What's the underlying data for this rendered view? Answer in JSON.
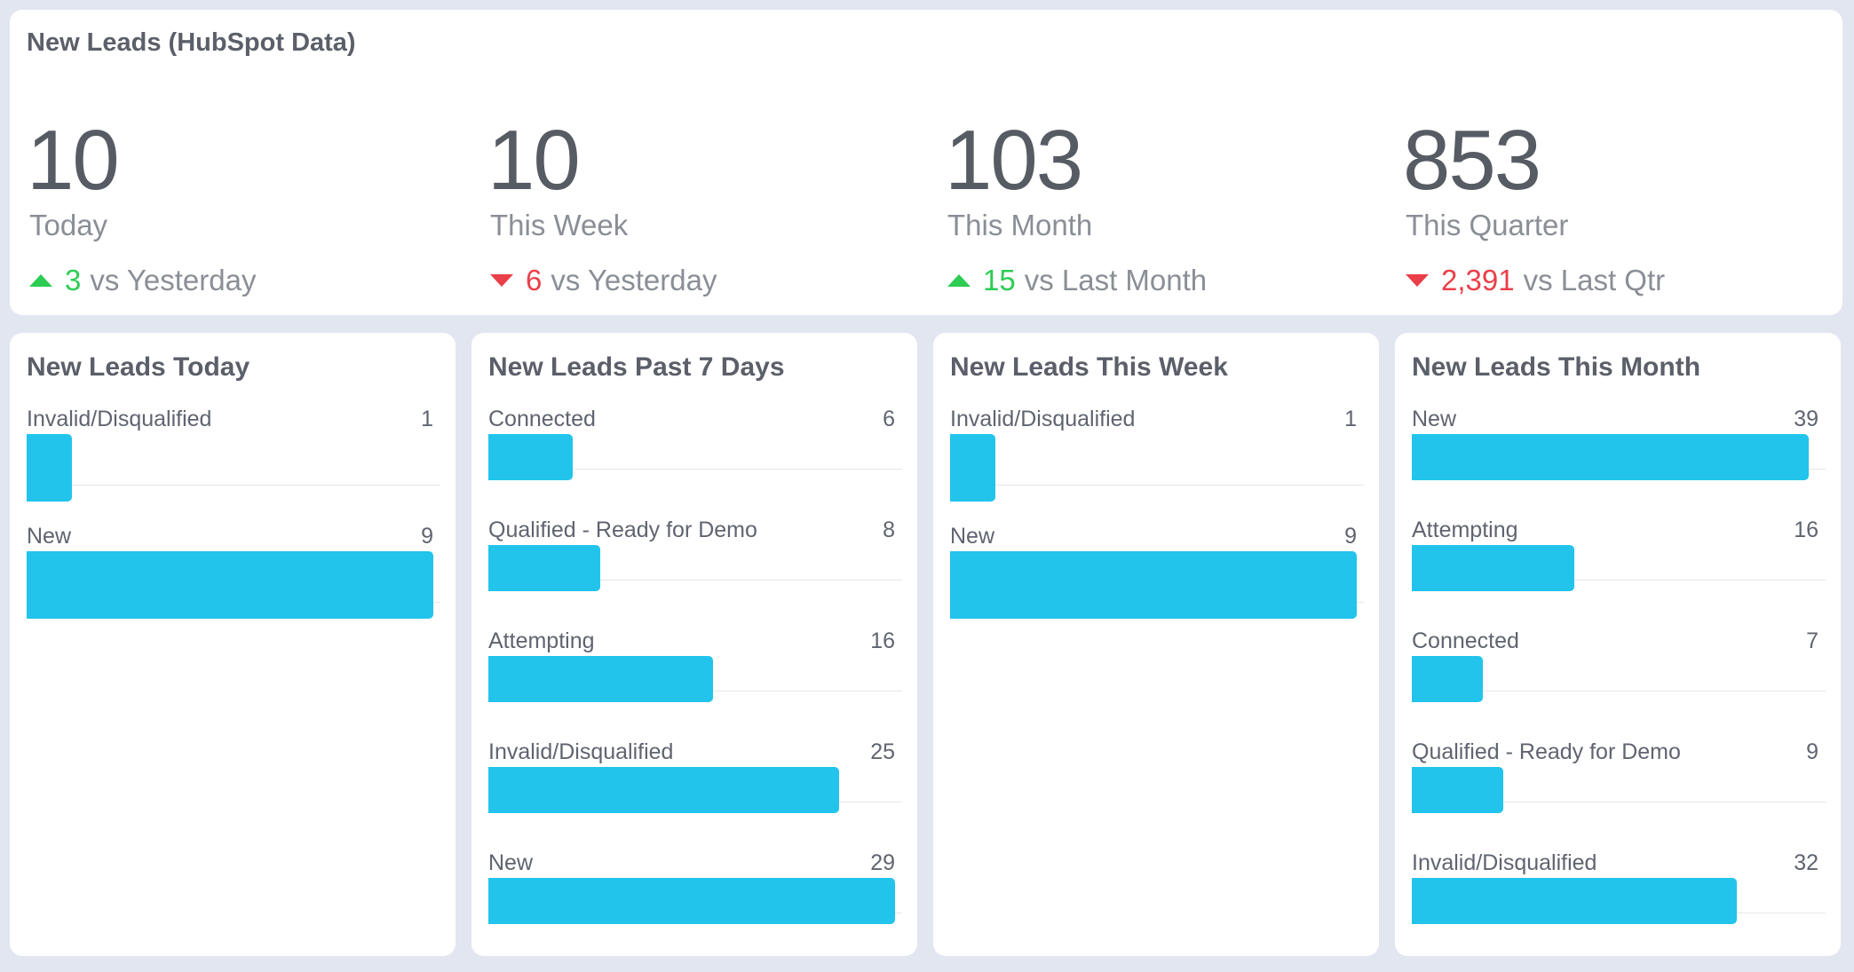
{
  "kpi_panel": {
    "title": "New Leads (HubSpot Data)",
    "colors": {
      "up": "#2ecc53",
      "down": "#ea3f48"
    },
    "items": [
      {
        "value": "10",
        "label": "Today",
        "direction": "up",
        "delta": "3",
        "compare": "vs Yesterday"
      },
      {
        "value": "10",
        "label": "This Week",
        "direction": "down",
        "delta": "6",
        "compare": "vs Yesterday"
      },
      {
        "value": "103",
        "label": "This Month",
        "direction": "up",
        "delta": "15",
        "compare": "vs Last Month"
      },
      {
        "value": "853",
        "label": "This Quarter",
        "direction": "down",
        "delta": "2,391",
        "compare": "vs Last Qtr"
      }
    ]
  },
  "bar_color": "#22c4ec",
  "chart_data": [
    {
      "type": "bar",
      "orientation": "horizontal",
      "title": "New Leads Today",
      "categories": [
        "Invalid/Disqualified",
        "New"
      ],
      "values": [
        1,
        9
      ],
      "xlim": [
        0,
        9
      ]
    },
    {
      "type": "bar",
      "orientation": "horizontal",
      "title": "New Leads Past 7 Days",
      "categories": [
        "Connected",
        "Qualified - Ready for Demo",
        "Attempting",
        "Invalid/Disqualified",
        "New"
      ],
      "values": [
        6,
        8,
        16,
        25,
        29
      ],
      "xlim": [
        0,
        29
      ]
    },
    {
      "type": "bar",
      "orientation": "horizontal",
      "title": "New Leads This Week",
      "categories": [
        "Invalid/Disqualified",
        "New"
      ],
      "values": [
        1,
        9
      ],
      "xlim": [
        0,
        9
      ]
    },
    {
      "type": "bar",
      "orientation": "horizontal",
      "title": "New Leads This Month",
      "categories": [
        "New",
        "Attempting",
        "Connected",
        "Qualified - Ready for Demo",
        "Invalid/Disqualified"
      ],
      "values": [
        39,
        16,
        7,
        9,
        32
      ],
      "xlim": [
        0,
        40
      ]
    }
  ]
}
